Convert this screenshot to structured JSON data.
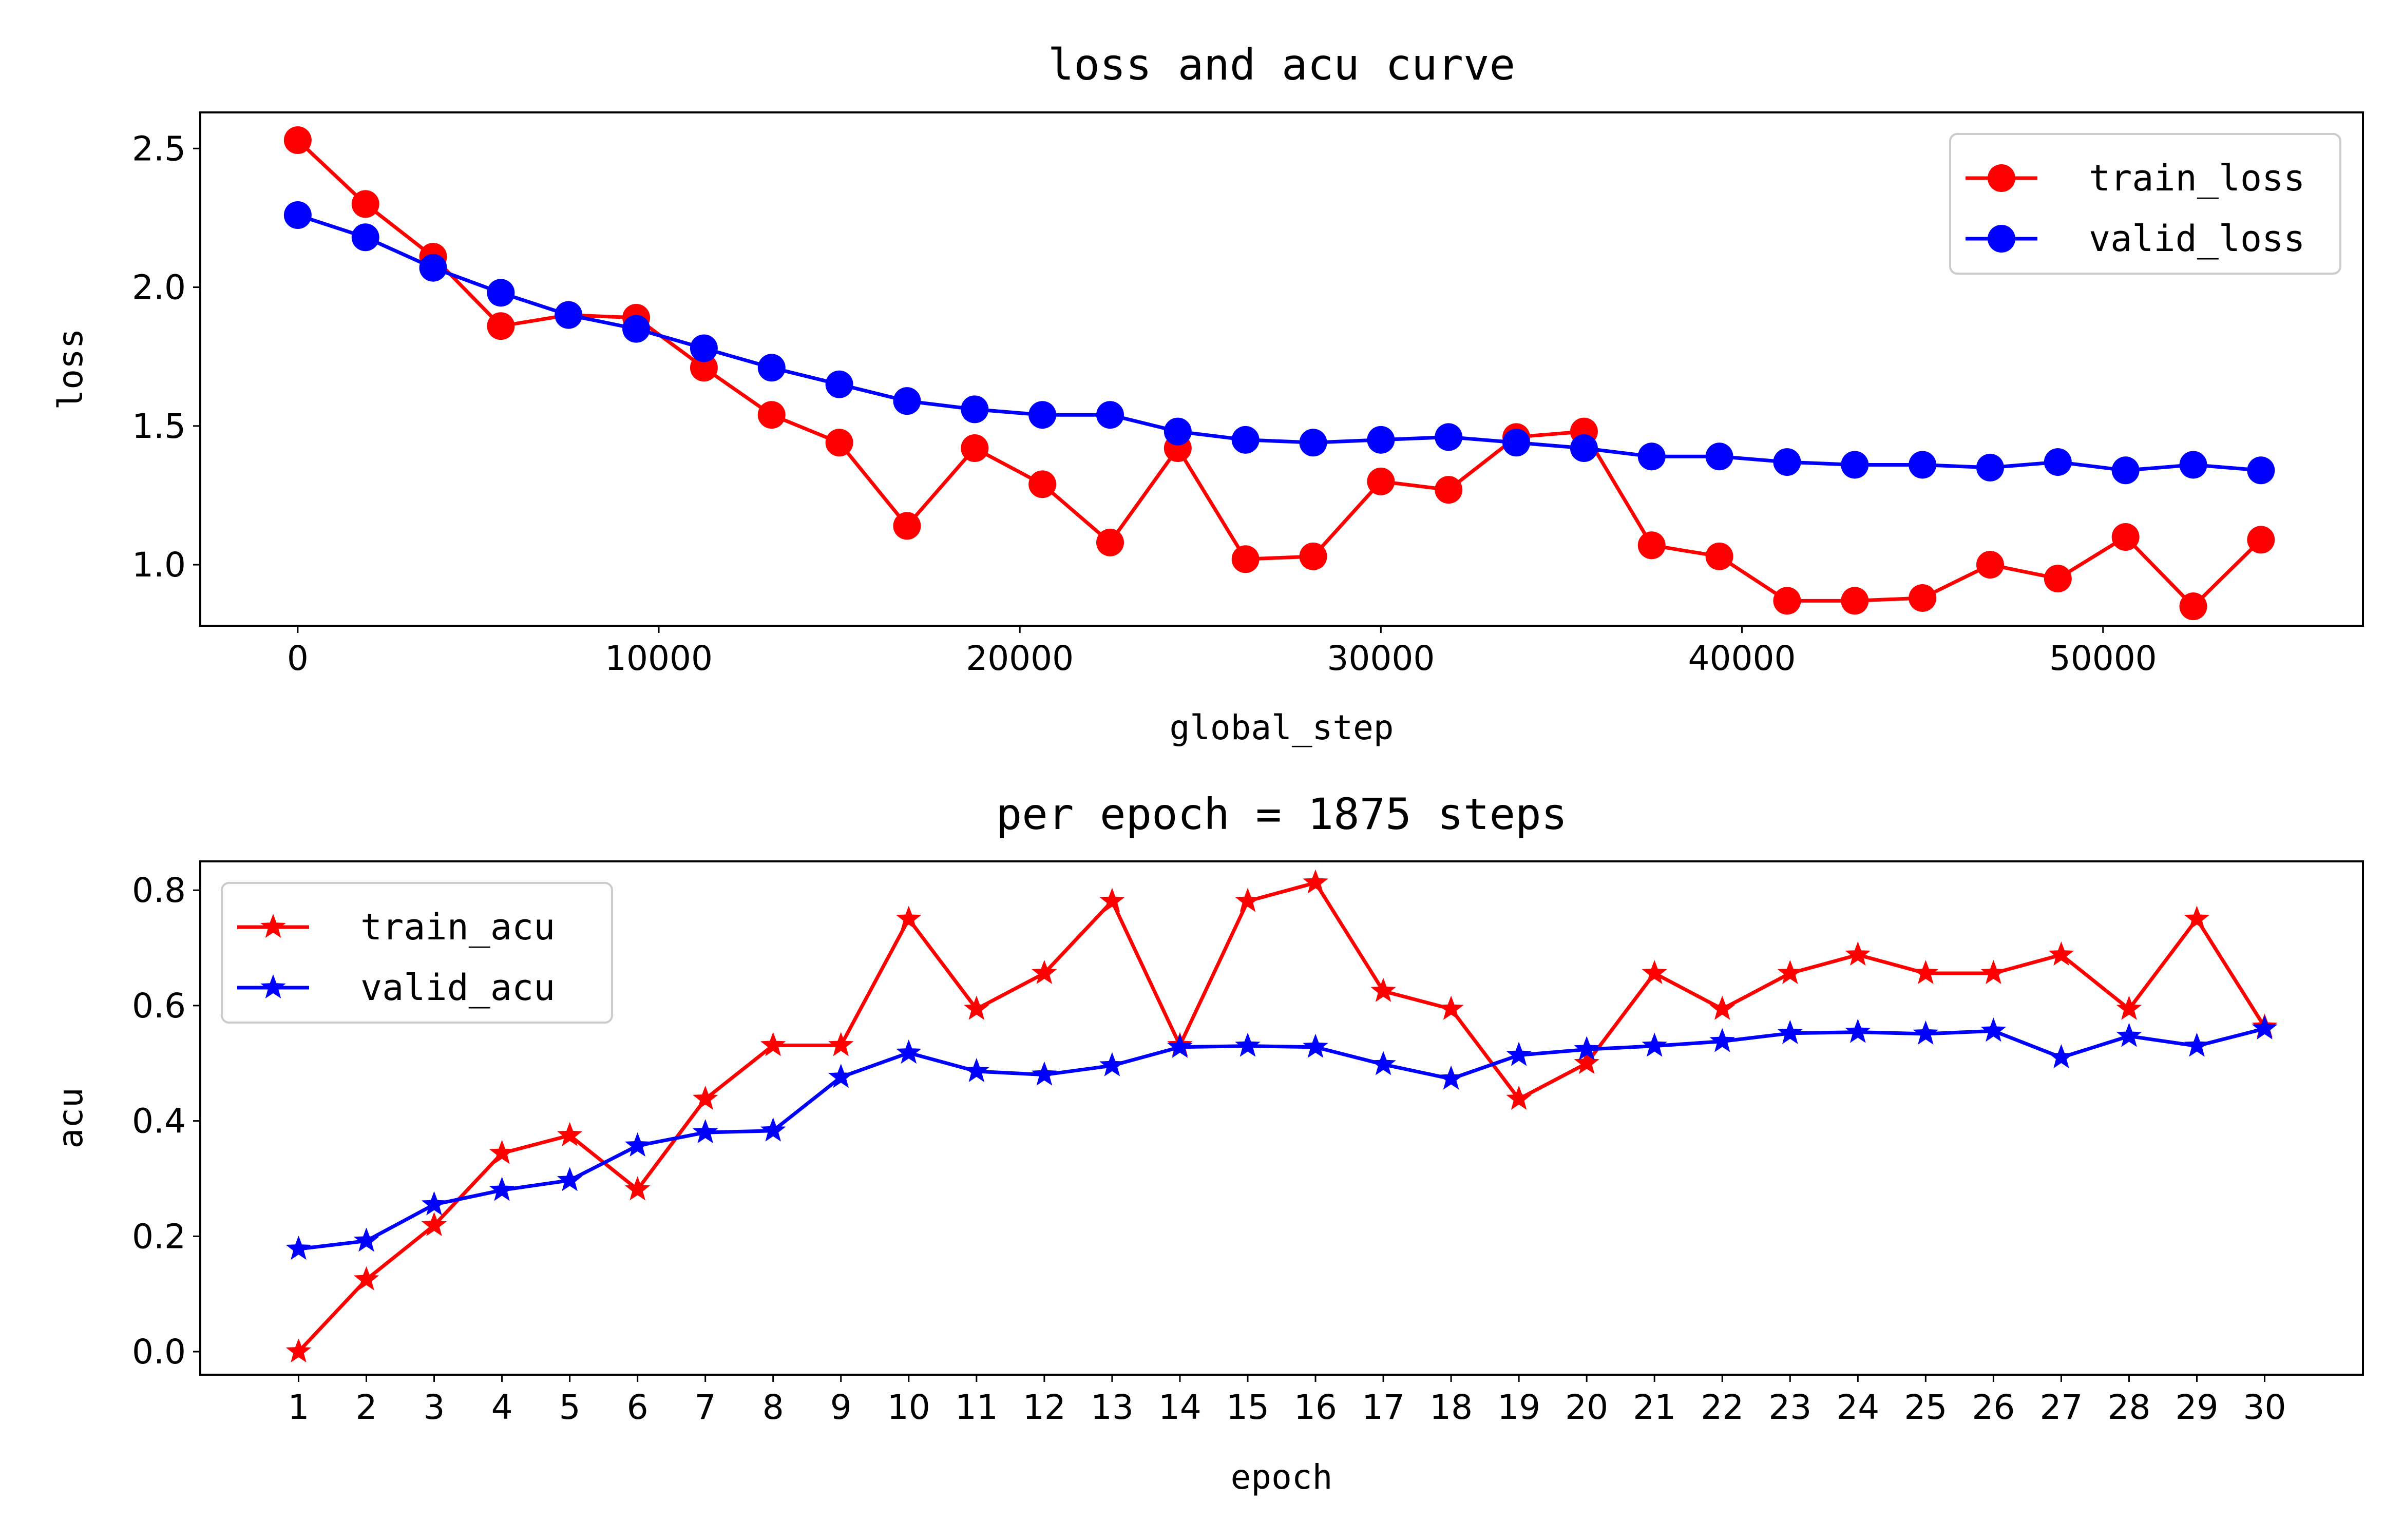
{
  "chart_data": [
    {
      "type": "line",
      "title": "loss and acu curve",
      "xlabel": "global_step",
      "ylabel": "loss",
      "xlim": [
        -2700,
        57200
      ],
      "ylim": [
        0.78,
        2.63
      ],
      "xticks": [
        0,
        10000,
        20000,
        30000,
        40000,
        50000
      ],
      "xtick_labels": [
        "0",
        "10000",
        "20000",
        "30000",
        "40000",
        "50000"
      ],
      "yticks": [
        1.0,
        1.5,
        2.0,
        2.5
      ],
      "ytick_labels": [
        "1.0",
        "1.5",
        "2.0",
        "2.5"
      ],
      "legend_position": "upper right",
      "grid": false,
      "marker": "circle",
      "x": [
        0,
        1875,
        3750,
        5625,
        7500,
        9375,
        11250,
        13125,
        15000,
        16875,
        18750,
        20625,
        22500,
        24375,
        26250,
        28125,
        30000,
        31875,
        33750,
        35625,
        37500,
        39375,
        41250,
        43125,
        45000,
        46875,
        48750,
        50625,
        52500,
        54375
      ],
      "series": [
        {
          "name": "train_loss",
          "color": "#ff0000",
          "values": [
            2.53,
            2.3,
            2.11,
            1.86,
            1.9,
            1.89,
            1.71,
            1.54,
            1.44,
            1.14,
            1.42,
            1.29,
            1.08,
            1.42,
            1.02,
            1.03,
            1.3,
            1.27,
            1.46,
            1.48,
            1.07,
            1.03,
            0.87,
            0.87,
            0.88,
            1.0,
            0.95,
            1.1,
            0.85,
            1.09
          ]
        },
        {
          "name": "valid_loss",
          "color": "#0000ff",
          "values": [
            2.26,
            2.18,
            2.07,
            1.98,
            1.9,
            1.85,
            1.78,
            1.71,
            1.65,
            1.59,
            1.56,
            1.54,
            1.54,
            1.48,
            1.45,
            1.44,
            1.45,
            1.46,
            1.44,
            1.42,
            1.39,
            1.39,
            1.37,
            1.36,
            1.36,
            1.35,
            1.37,
            1.34,
            1.36,
            1.34
          ]
        }
      ]
    },
    {
      "type": "line",
      "title": "per epoch = 1875 steps",
      "xlabel": "epoch",
      "ylabel": "acu",
      "xlim": [
        -0.45,
        31.45
      ],
      "ylim": [
        -0.04,
        0.85
      ],
      "categories": [
        "1",
        "2",
        "3",
        "4",
        "5",
        "6",
        "7",
        "8",
        "9",
        "10",
        "11",
        "12",
        "13",
        "14",
        "15",
        "16",
        "17",
        "18",
        "19",
        "20",
        "21",
        "22",
        "23",
        "24",
        "25",
        "26",
        "27",
        "28",
        "29",
        "30"
      ],
      "yticks": [
        0.0,
        0.2,
        0.4,
        0.6,
        0.8
      ],
      "ytick_labels": [
        "0.0",
        "0.2",
        "0.4",
        "0.6",
        "0.8"
      ],
      "legend_position": "upper left",
      "grid": false,
      "marker": "star",
      "series": [
        {
          "name": "train_acu",
          "color": "#ff0000",
          "values": [
            0.0,
            0.125,
            0.219,
            0.344,
            0.375,
            0.281,
            0.438,
            0.531,
            0.531,
            0.75,
            0.594,
            0.656,
            0.781,
            0.531,
            0.781,
            0.813,
            0.625,
            0.594,
            0.438,
            0.5,
            0.656,
            0.594,
            0.656,
            0.688,
            0.656,
            0.656,
            0.688,
            0.594,
            0.75,
            0.563
          ]
        },
        {
          "name": "valid_acu",
          "color": "#0000ff",
          "values": [
            0.178,
            0.192,
            0.255,
            0.28,
            0.297,
            0.357,
            0.38,
            0.383,
            0.476,
            0.518,
            0.486,
            0.48,
            0.496,
            0.528,
            0.53,
            0.528,
            0.498,
            0.473,
            0.514,
            0.524,
            0.53,
            0.538,
            0.552,
            0.554,
            0.551,
            0.556,
            0.51,
            0.547,
            0.53,
            0.56
          ]
        }
      ]
    }
  ]
}
